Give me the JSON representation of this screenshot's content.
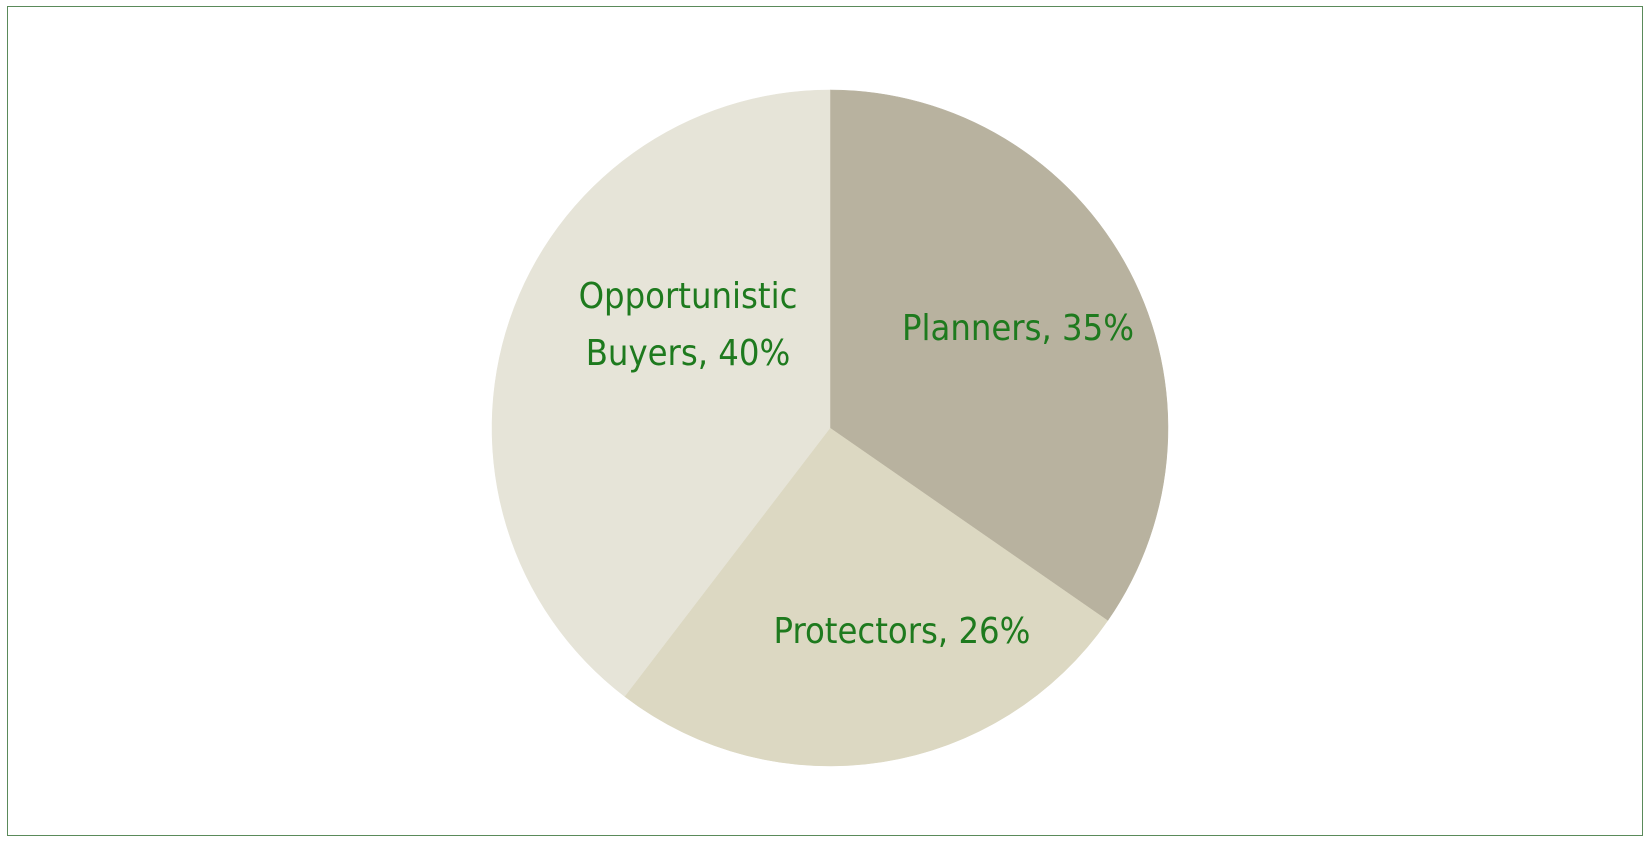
{
  "chart_data": {
    "type": "pie",
    "title": "",
    "slices": [
      {
        "label": "Planners",
        "value": 35,
        "display": "Planners, 35%",
        "color": "#b8b29f"
      },
      {
        "label": "Protectors",
        "value": 26,
        "display": "Protectors, 26%",
        "color": "#dcd8c2"
      },
      {
        "label": "Opportunistic Buyers",
        "value": 40,
        "display_lines": [
          "Opportunistic",
          "Buyers, 40%"
        ],
        "color": "#e6e4d8"
      }
    ],
    "start_angle_deg": 0,
    "direction": "clockwise",
    "label_color": "#1e7a1e",
    "frame_color": "#5a8a5a",
    "legend": "none"
  }
}
